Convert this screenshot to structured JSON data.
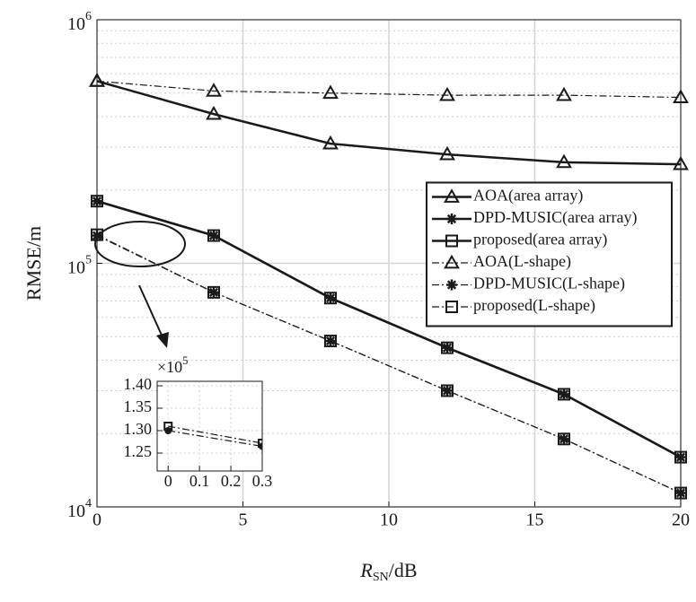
{
  "chart_data": [
    {
      "type": "line",
      "xlabel": {
        "main": "R",
        "sub": "SN",
        "rest": "/dB"
      },
      "ylabel": "RMSE/m",
      "x": [
        0,
        4,
        8,
        12,
        16,
        20
      ],
      "xlim": [
        0,
        20
      ],
      "xticks": [
        0,
        5,
        10,
        15,
        20
      ],
      "ylim": [
        10000,
        1000000
      ],
      "yticks": [
        {
          "value": 10000,
          "label": "10",
          "exponent": "4"
        },
        {
          "value": 100000,
          "label": "10",
          "exponent": "5"
        },
        {
          "value": 1000000,
          "label": "10",
          "exponent": "6"
        }
      ],
      "log_y": true,
      "grid": true,
      "legend": "center right",
      "series": [
        {
          "name": "AOA(area array)",
          "color": "#1a1a1a",
          "line_style": "solid",
          "marker": "triangle",
          "values": [
            560000,
            410000,
            310000,
            280000,
            260000,
            255000
          ]
        },
        {
          "name": "DPD-MUSIC(area array)",
          "color": "#1a1a1a",
          "line_style": "solid",
          "marker": "asterisk",
          "values": [
            180000,
            130000,
            72000,
            45000,
            29000,
            16000
          ]
        },
        {
          "name": "proposed(area array)",
          "color": "#1a1a1a",
          "line_style": "solid",
          "marker": "square",
          "values": [
            180000,
            130000,
            72000,
            45000,
            29000,
            16000
          ]
        },
        {
          "name": "AOA(L-shape)",
          "color": "#1a1a1a",
          "line_style": "dashdot",
          "marker": "triangle",
          "values": [
            560000,
            510000,
            500000,
            490000,
            490000,
            480000
          ]
        },
        {
          "name": "DPD-MUSIC(L-shape)",
          "color": "#1a1a1a",
          "line_style": "dashdot",
          "marker": "asterisk",
          "values": [
            130000,
            76000,
            48000,
            30000,
            19000,
            11400
          ]
        },
        {
          "name": "proposed(L-shape)",
          "color": "#1a1a1a",
          "line_style": "dashdot",
          "marker": "square",
          "values": [
            131000,
            76000,
            48000,
            30000,
            19000,
            11400
          ]
        }
      ]
    },
    {
      "type": "line",
      "x": [
        0,
        0.3
      ],
      "xlim": [
        -0.035,
        0.3
      ],
      "xticks": [
        0,
        0.1,
        0.2,
        0.3
      ],
      "ylim": [
        1.21,
        1.41
      ],
      "yticks": [
        1.25,
        {
          "value": 1.3,
          "label": "1.30"
        },
        1.35,
        {
          "value": 1.4,
          "label": "1.40"
        }
      ],
      "multiplier": {
        "base": "×10",
        "exponent": "5"
      },
      "grid": true,
      "series": [
        {
          "color": "#1a1a1a",
          "line_style": "dashdot",
          "marker": "asterisk",
          "values": [
            1.3,
            1.265
          ]
        },
        {
          "color": "#1a1a1a",
          "line_style": "dashdot",
          "marker": "square",
          "values": [
            1.31,
            1.272
          ]
        }
      ]
    }
  ]
}
